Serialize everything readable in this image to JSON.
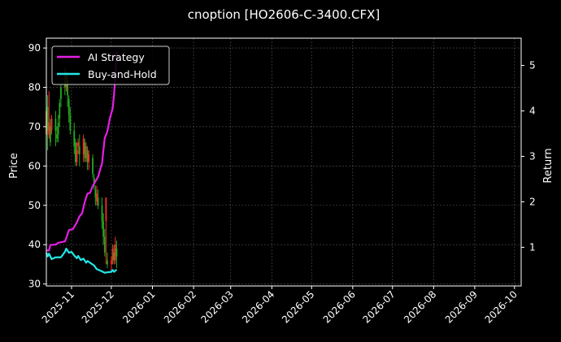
{
  "chart_data": {
    "type": "line",
    "title": "cnoption [HO2606-C-3400.CFX]",
    "ylabel_left": "Price",
    "ylabel_right": "Return",
    "ylim_left": [
      29.5,
      92.5
    ],
    "ylim_right": [
      0.15,
      5.6
    ],
    "xlim": [
      "2025-10-13",
      "2026-10-06"
    ],
    "grid": true,
    "legend_position": "top-left",
    "colors": {
      "background": "#000000",
      "grid": "#555555",
      "ai": "#e61ee6",
      "bh": "#22e6e6",
      "up": "#ff2a2a",
      "down": "#22aa22"
    },
    "x_ticks": [
      "2025-11",
      "2025-12",
      "2026-01",
      "2026-02",
      "2026-03",
      "2026-04",
      "2026-05",
      "2026-06",
      "2026-07",
      "2026-08",
      "2026-09",
      "2026-10"
    ],
    "y_ticks_left": [
      30,
      40,
      50,
      60,
      70,
      80,
      90
    ],
    "y_ticks_right": [
      1,
      2,
      3,
      4,
      5
    ],
    "candles": [
      {
        "x": "2025-10-13",
        "o": 68,
        "c": 74,
        "h": 75,
        "l": 65
      },
      {
        "x": "2025-10-14",
        "o": 75,
        "c": 69,
        "h": 78,
        "l": 64
      },
      {
        "x": "2025-10-15",
        "o": 68,
        "c": 71,
        "h": 79,
        "l": 67
      },
      {
        "x": "2025-10-16",
        "o": 70,
        "c": 66,
        "h": 72,
        "l": 65
      },
      {
        "x": "2025-10-17",
        "o": 69,
        "c": 72,
        "h": 73,
        "l": 68
      },
      {
        "x": "2025-10-20",
        "o": 72,
        "c": 69,
        "h": 74,
        "l": 65
      },
      {
        "x": "2025-10-21",
        "o": 68,
        "c": 67,
        "h": 70,
        "l": 66
      },
      {
        "x": "2025-10-22",
        "o": 71,
        "c": 68,
        "h": 73,
        "l": 66
      },
      {
        "x": "2025-10-23",
        "o": 76,
        "c": 72,
        "h": 77,
        "l": 70
      },
      {
        "x": "2025-10-24",
        "o": 80,
        "c": 77,
        "h": 81,
        "l": 75
      },
      {
        "x": "2025-10-27",
        "o": 84,
        "c": 80,
        "h": 85,
        "l": 78
      },
      {
        "x": "2025-10-28",
        "o": 80,
        "c": 83,
        "h": 84,
        "l": 79
      },
      {
        "x": "2025-10-29",
        "o": 82,
        "c": 78,
        "h": 84,
        "l": 75
      },
      {
        "x": "2025-10-30",
        "o": 77,
        "c": 73,
        "h": 78,
        "l": 71
      },
      {
        "x": "2025-10-31",
        "o": 73,
        "c": 69,
        "h": 75,
        "l": 68
      },
      {
        "x": "2025-11-03",
        "o": 69,
        "c": 65,
        "h": 71,
        "l": 63
      },
      {
        "x": "2025-11-04",
        "o": 66,
        "c": 61,
        "h": 67,
        "l": 60
      },
      {
        "x": "2025-11-05",
        "o": 61,
        "c": 64,
        "h": 66,
        "l": 60
      },
      {
        "x": "2025-11-06",
        "o": 65,
        "c": 66,
        "h": 67,
        "l": 63
      },
      {
        "x": "2025-11-07",
        "o": 65,
        "c": 63,
        "h": 68,
        "l": 60
      },
      {
        "x": "2025-11-10",
        "o": 63,
        "c": 67,
        "h": 68,
        "l": 61
      },
      {
        "x": "2025-11-11",
        "o": 66,
        "c": 62,
        "h": 67,
        "l": 61
      },
      {
        "x": "2025-11-12",
        "o": 62,
        "c": 65,
        "h": 66,
        "l": 61
      },
      {
        "x": "2025-11-13",
        "o": 64,
        "c": 61,
        "h": 65,
        "l": 59
      },
      {
        "x": "2025-11-14",
        "o": 61,
        "c": 63,
        "h": 64,
        "l": 59
      },
      {
        "x": "2025-11-17",
        "o": 62,
        "c": 58,
        "h": 63,
        "l": 57
      },
      {
        "x": "2025-11-18",
        "o": 57,
        "c": 55,
        "h": 58,
        "l": 54
      },
      {
        "x": "2025-11-19",
        "o": 54,
        "c": 52,
        "h": 55,
        "l": 50
      },
      {
        "x": "2025-11-20",
        "o": 51,
        "c": 53,
        "h": 55,
        "l": 50
      },
      {
        "x": "2025-11-21",
        "o": 52,
        "c": 50,
        "h": 54,
        "l": 49
      },
      {
        "x": "2025-11-24",
        "o": 50,
        "c": 46,
        "h": 52,
        "l": 44
      },
      {
        "x": "2025-11-25",
        "o": 46,
        "c": 42,
        "h": 48,
        "l": 40
      },
      {
        "x": "2025-11-26",
        "o": 42,
        "c": 38,
        "h": 44,
        "l": 37
      },
      {
        "x": "2025-11-27",
        "o": 46,
        "c": 52,
        "h": 52,
        "l": 35
      },
      {
        "x": "2025-11-28",
        "o": 36,
        "c": 35,
        "h": 38,
        "l": 34
      },
      {
        "x": "2025-12-01",
        "o": 35,
        "c": 36,
        "h": 37,
        "l": 33
      },
      {
        "x": "2025-12-02",
        "o": 36,
        "c": 39,
        "h": 40,
        "l": 35
      },
      {
        "x": "2025-12-03",
        "o": 38,
        "c": 36,
        "h": 40,
        "l": 35
      },
      {
        "x": "2025-12-04",
        "o": 36,
        "c": 40,
        "h": 42,
        "l": 35
      },
      {
        "x": "2025-12-05",
        "o": 39,
        "c": 37,
        "h": 41,
        "l": 34
      }
    ],
    "series": [
      {
        "name": "AI Strategy",
        "points": [
          [
            "2025-10-13",
            0.93
          ],
          [
            "2025-10-15",
            0.93
          ],
          [
            "2025-10-16",
            1.05
          ],
          [
            "2025-10-20",
            1.06
          ],
          [
            "2025-10-22",
            1.1
          ],
          [
            "2025-10-27",
            1.13
          ],
          [
            "2025-10-28",
            1.2
          ],
          [
            "2025-10-30",
            1.38
          ],
          [
            "2025-11-02",
            1.4
          ],
          [
            "2025-11-05",
            1.55
          ],
          [
            "2025-11-07",
            1.68
          ],
          [
            "2025-11-09",
            1.75
          ],
          [
            "2025-11-11",
            2.0
          ],
          [
            "2025-11-13",
            2.18
          ],
          [
            "2025-11-15",
            2.2
          ],
          [
            "2025-11-17",
            2.35
          ],
          [
            "2025-11-19",
            2.45
          ],
          [
            "2025-11-21",
            2.55
          ],
          [
            "2025-11-24",
            2.85
          ],
          [
            "2025-11-26",
            3.4
          ],
          [
            "2025-11-28",
            3.55
          ],
          [
            "2025-11-30",
            3.85
          ],
          [
            "2025-12-01",
            3.95
          ],
          [
            "2025-12-02",
            4.05
          ],
          [
            "2025-12-03",
            4.35
          ],
          [
            "2025-12-04",
            4.75
          ],
          [
            "2025-12-05",
            5.3
          ]
        ]
      },
      {
        "name": "Buy-and-Hold",
        "points": [
          [
            "2025-10-13",
            0.88
          ],
          [
            "2025-10-14",
            0.8
          ],
          [
            "2025-10-15",
            0.86
          ],
          [
            "2025-10-17",
            0.74
          ],
          [
            "2025-10-20",
            0.78
          ],
          [
            "2025-10-24",
            0.78
          ],
          [
            "2025-10-27",
            0.9
          ],
          [
            "2025-10-28",
            0.97
          ],
          [
            "2025-10-30",
            0.88
          ],
          [
            "2025-11-01",
            0.9
          ],
          [
            "2025-11-03",
            0.82
          ],
          [
            "2025-11-05",
            0.76
          ],
          [
            "2025-11-06",
            0.81
          ],
          [
            "2025-11-08",
            0.72
          ],
          [
            "2025-11-10",
            0.75
          ],
          [
            "2025-11-12",
            0.66
          ],
          [
            "2025-11-13",
            0.7
          ],
          [
            "2025-11-15",
            0.66
          ],
          [
            "2025-11-18",
            0.6
          ],
          [
            "2025-11-20",
            0.52
          ],
          [
            "2025-11-24",
            0.47
          ],
          [
            "2025-11-26",
            0.44
          ],
          [
            "2025-11-28",
            0.45
          ],
          [
            "2025-12-01",
            0.46
          ],
          [
            "2025-12-02",
            0.5
          ],
          [
            "2025-12-03",
            0.46
          ],
          [
            "2025-12-05",
            0.51
          ]
        ]
      }
    ]
  }
}
